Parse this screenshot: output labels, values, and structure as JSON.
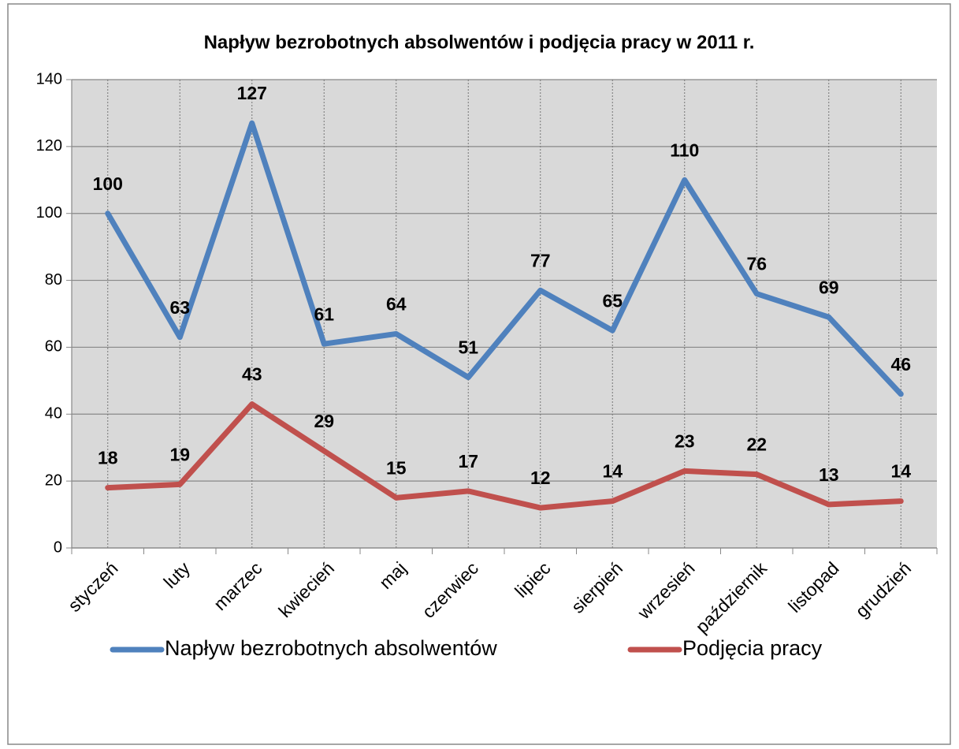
{
  "chart_data": {
    "type": "line",
    "title": "Napływ bezrobotnych absolwentów i podjęcia pracy w 2011 r.",
    "categories": [
      "styczeń",
      "luty",
      "marzec",
      "kwiecień",
      "maj",
      "czerwiec",
      "lipiec",
      "sierpień",
      "wrzesień",
      "październik",
      "listopad",
      "grudzień"
    ],
    "series": [
      {
        "name": "Napływ bezrobotnych absolwentów",
        "color": "#4f81bd",
        "values": [
          100,
          63,
          127,
          61,
          64,
          51,
          77,
          65,
          110,
          76,
          69,
          46
        ]
      },
      {
        "name": "Podjęcia pracy",
        "color": "#c0504d",
        "values": [
          18,
          19,
          43,
          29,
          15,
          17,
          12,
          14,
          23,
          22,
          13,
          14
        ]
      }
    ],
    "ylim": [
      0,
      140
    ],
    "yticks": [
      0,
      20,
      40,
      60,
      80,
      100,
      120,
      140
    ],
    "grid": true,
    "legend": "bottom"
  }
}
